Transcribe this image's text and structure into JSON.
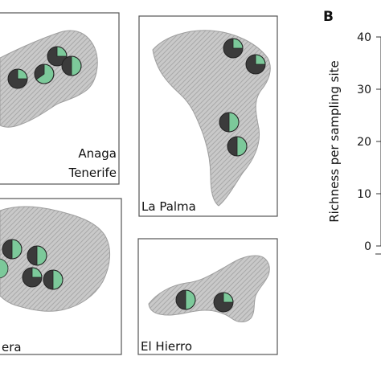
{
  "panels": {
    "b_label": "B"
  },
  "maps": {
    "anaga": {
      "label_line1": "Anaga",
      "label_line2": "Tenerife"
    },
    "la_palma": {
      "label": "La Palma"
    },
    "la_gomera": {
      "label": "era"
    },
    "el_hierro": {
      "label": "El Hierro"
    }
  },
  "chart_b": {
    "ylabel": "Richness per sampling site",
    "ticks": [
      "0",
      "10",
      "20",
      "30",
      "40"
    ]
  },
  "colors": {
    "pie_green": "#7cc99a",
    "pie_dark": "#3b3b3b",
    "relief": "#bdbdbd",
    "frame": "#555555"
  }
}
